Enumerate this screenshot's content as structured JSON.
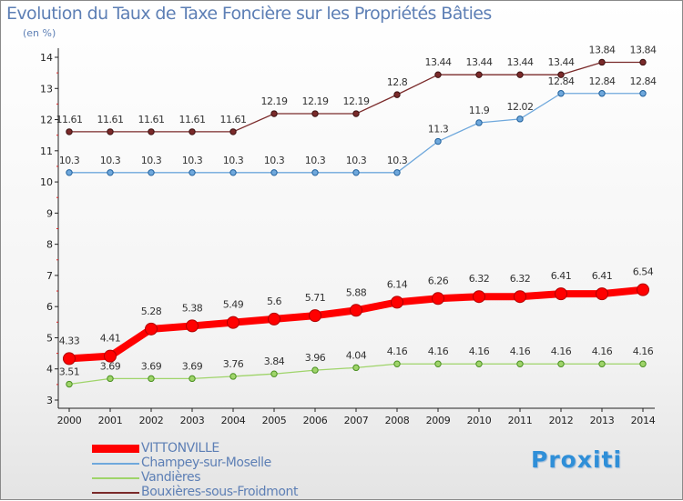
{
  "chart_data": {
    "type": "line",
    "title": "Evolution du Taux de Taxe Foncière sur les Propriétés Bâties",
    "ylabel": "(en %)",
    "xlabel": "",
    "ylim": [
      3,
      14
    ],
    "yticks": [
      "3",
      "4",
      "5",
      "6",
      "7",
      "8",
      "9",
      "10",
      "11",
      "12",
      "13",
      "14"
    ],
    "categories": [
      "2000",
      "2001",
      "2002",
      "2003",
      "2004",
      "2005",
      "2006",
      "2007",
      "2008",
      "2009",
      "2010",
      "2011",
      "2012",
      "2013",
      "2014"
    ],
    "series": [
      {
        "name": "VITTONVILLE",
        "color": "#ff0000",
        "values": [
          4.33,
          4.41,
          5.28,
          5.38,
          5.49,
          5.6,
          5.71,
          5.88,
          6.14,
          6.26,
          6.32,
          6.32,
          6.41,
          6.41,
          6.54
        ],
        "labels": [
          "4.33",
          "4.41",
          "5.28",
          "5.38",
          "5.49",
          "5.6",
          "5.71",
          "5.88",
          "6.14",
          "6.26",
          "6.32",
          "6.32",
          "6.41",
          "6.41",
          "6.54"
        ]
      },
      {
        "name": "Champey-sur-Moselle",
        "color": "#6fa8dc",
        "values": [
          10.3,
          10.3,
          10.3,
          10.3,
          10.3,
          10.3,
          10.3,
          10.3,
          10.3,
          11.3,
          11.9,
          12.02,
          12.84,
          12.84,
          12.84
        ],
        "labels": [
          "10.3",
          "10.3",
          "10.3",
          "10.3",
          "10.3",
          "10.3",
          "10.3",
          "10.3",
          "10.3",
          "11.3",
          "11.9",
          "12.02",
          "12.84",
          "12.84",
          "12.84"
        ]
      },
      {
        "name": "Vandières",
        "color": "#9fd46a",
        "values": [
          3.51,
          3.69,
          3.69,
          3.69,
          3.76,
          3.84,
          3.96,
          4.04,
          4.16,
          4.16,
          4.16,
          4.16,
          4.16,
          4.16,
          4.16
        ],
        "labels": [
          "3.51",
          "3.69",
          "3.69",
          "3.69",
          "3.76",
          "3.84",
          "3.96",
          "4.04",
          "4.16",
          "4.16",
          "4.16",
          "4.16",
          "4.16",
          "4.16",
          "4.16"
        ]
      },
      {
        "name": "Bouxières-sous-Froidmont",
        "color": "#7a2a2a",
        "values": [
          11.61,
          11.61,
          11.61,
          11.61,
          11.61,
          12.19,
          12.19,
          12.19,
          12.8,
          13.44,
          13.44,
          13.44,
          13.44,
          13.84,
          13.84
        ],
        "labels": [
          "11.61",
          "11.61",
          "11.61",
          "11.61",
          "11.61",
          "12.19",
          "12.19",
          "12.19",
          "12.8",
          "13.44",
          "13.44",
          "13.44",
          "13.44",
          "13.84",
          "13.84"
        ]
      }
    ],
    "legend": [
      "VITTONVILLE",
      "Champey-sur-Moselle",
      "Vandières",
      "Bouxières-sous-Froidmont"
    ],
    "grid": false
  },
  "logo_text": "Proxiti"
}
